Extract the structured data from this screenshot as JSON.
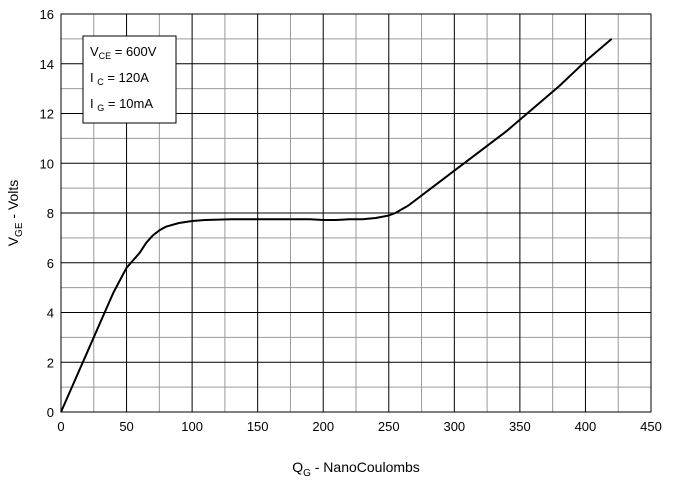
{
  "chart_data": {
    "type": "line",
    "xlabel": {
      "main": "Q",
      "sub": "G",
      "rest": " - NanoCoulombs"
    },
    "ylabel": {
      "main": "V",
      "sub": "GE",
      "rest": " - Volts"
    },
    "xlim": [
      0,
      450
    ],
    "ylim": [
      0,
      16
    ],
    "xticks": [
      0,
      50,
      100,
      150,
      200,
      250,
      300,
      350,
      400,
      450
    ],
    "yticks": [
      0,
      2,
      4,
      6,
      8,
      10,
      12,
      14,
      16
    ],
    "xminor_step": 25,
    "yminor_step": 1,
    "grid": true,
    "legend_position": "top-left",
    "conditions": [
      {
        "main": "V",
        "sub": "CE",
        "rest": " = 600V"
      },
      {
        "main": "I ",
        "sub": "C",
        "rest": " = 120A"
      },
      {
        "main": "I ",
        "sub": "G",
        "rest": " = 10mA"
      }
    ],
    "series": [
      {
        "color": "#000000",
        "x": [
          0,
          10,
          20,
          30,
          40,
          50,
          60,
          65,
          70,
          75,
          80,
          90,
          100,
          110,
          130,
          150,
          170,
          190,
          200,
          210,
          220,
          230,
          240,
          250,
          255,
          265,
          280,
          300,
          320,
          340,
          360,
          380,
          400,
          420
        ],
        "y": [
          0,
          1.2,
          2.4,
          3.6,
          4.8,
          5.8,
          6.4,
          6.8,
          7.1,
          7.3,
          7.45,
          7.6,
          7.68,
          7.72,
          7.75,
          7.75,
          7.75,
          7.75,
          7.72,
          7.72,
          7.75,
          7.75,
          7.8,
          7.9,
          8.0,
          8.3,
          8.9,
          9.7,
          10.5,
          11.3,
          12.2,
          13.1,
          14.1,
          15.0
        ]
      }
    ]
  }
}
